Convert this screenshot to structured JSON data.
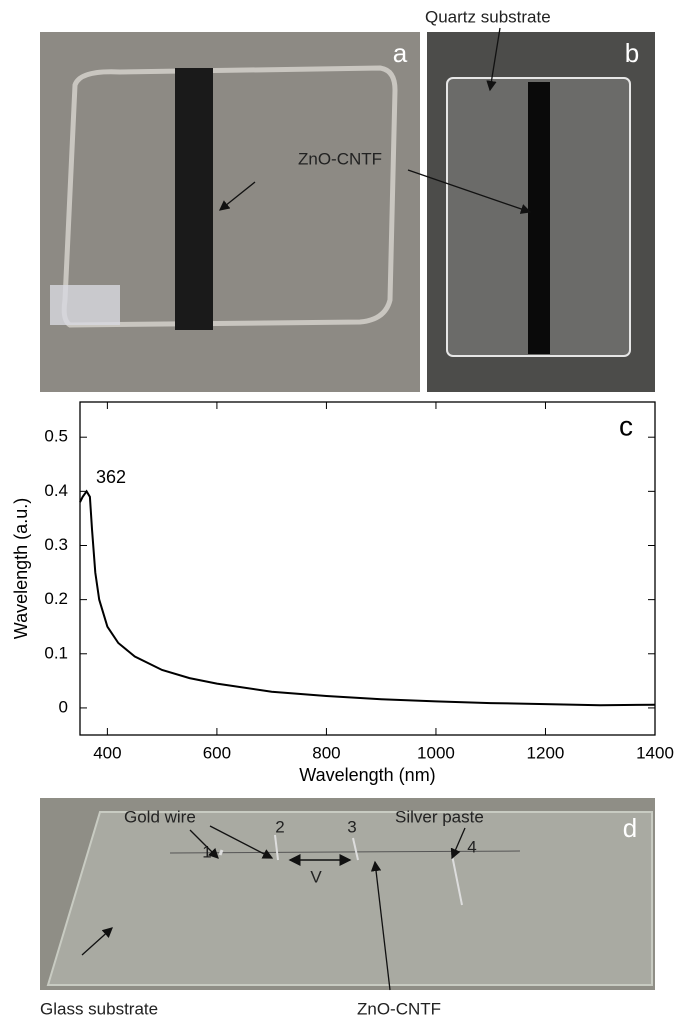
{
  "panels": {
    "a": {
      "label": "a",
      "annotation": "ZnO-CNTF"
    },
    "b": {
      "label": "b",
      "annotation": "Quartz substrate"
    },
    "d": {
      "label": "d",
      "annotations": [
        "Gold wire",
        "Silver paste",
        "Glass substrate",
        "ZnO-CNTF"
      ],
      "contacts": [
        "1",
        "2",
        "3",
        "4"
      ],
      "voltage": "V"
    }
  },
  "chart_data": {
    "type": "line",
    "label": "c",
    "x_label": "Wavelength (nm)",
    "y_label": "Wavelength (a.u.)",
    "annotation": "362",
    "x": [
      350,
      355,
      362,
      368,
      372,
      378,
      385,
      400,
      420,
      450,
      500,
      550,
      600,
      700,
      800,
      900,
      1000,
      1100,
      1200,
      1300,
      1400
    ],
    "values": [
      0.38,
      0.39,
      0.4,
      0.39,
      0.33,
      0.25,
      0.2,
      0.15,
      0.12,
      0.095,
      0.07,
      0.055,
      0.045,
      0.03,
      0.022,
      0.016,
      0.012,
      0.009,
      0.007,
      0.005,
      0.006
    ],
    "color": "#000000",
    "xlim": [
      350,
      1400
    ],
    "xticks": [
      400,
      600,
      800,
      1000,
      1200,
      1400
    ],
    "ylim": [
      -0.05,
      0.565
    ],
    "yticks": [
      0,
      0.1,
      0.2,
      0.3,
      0.4,
      0.5
    ]
  }
}
